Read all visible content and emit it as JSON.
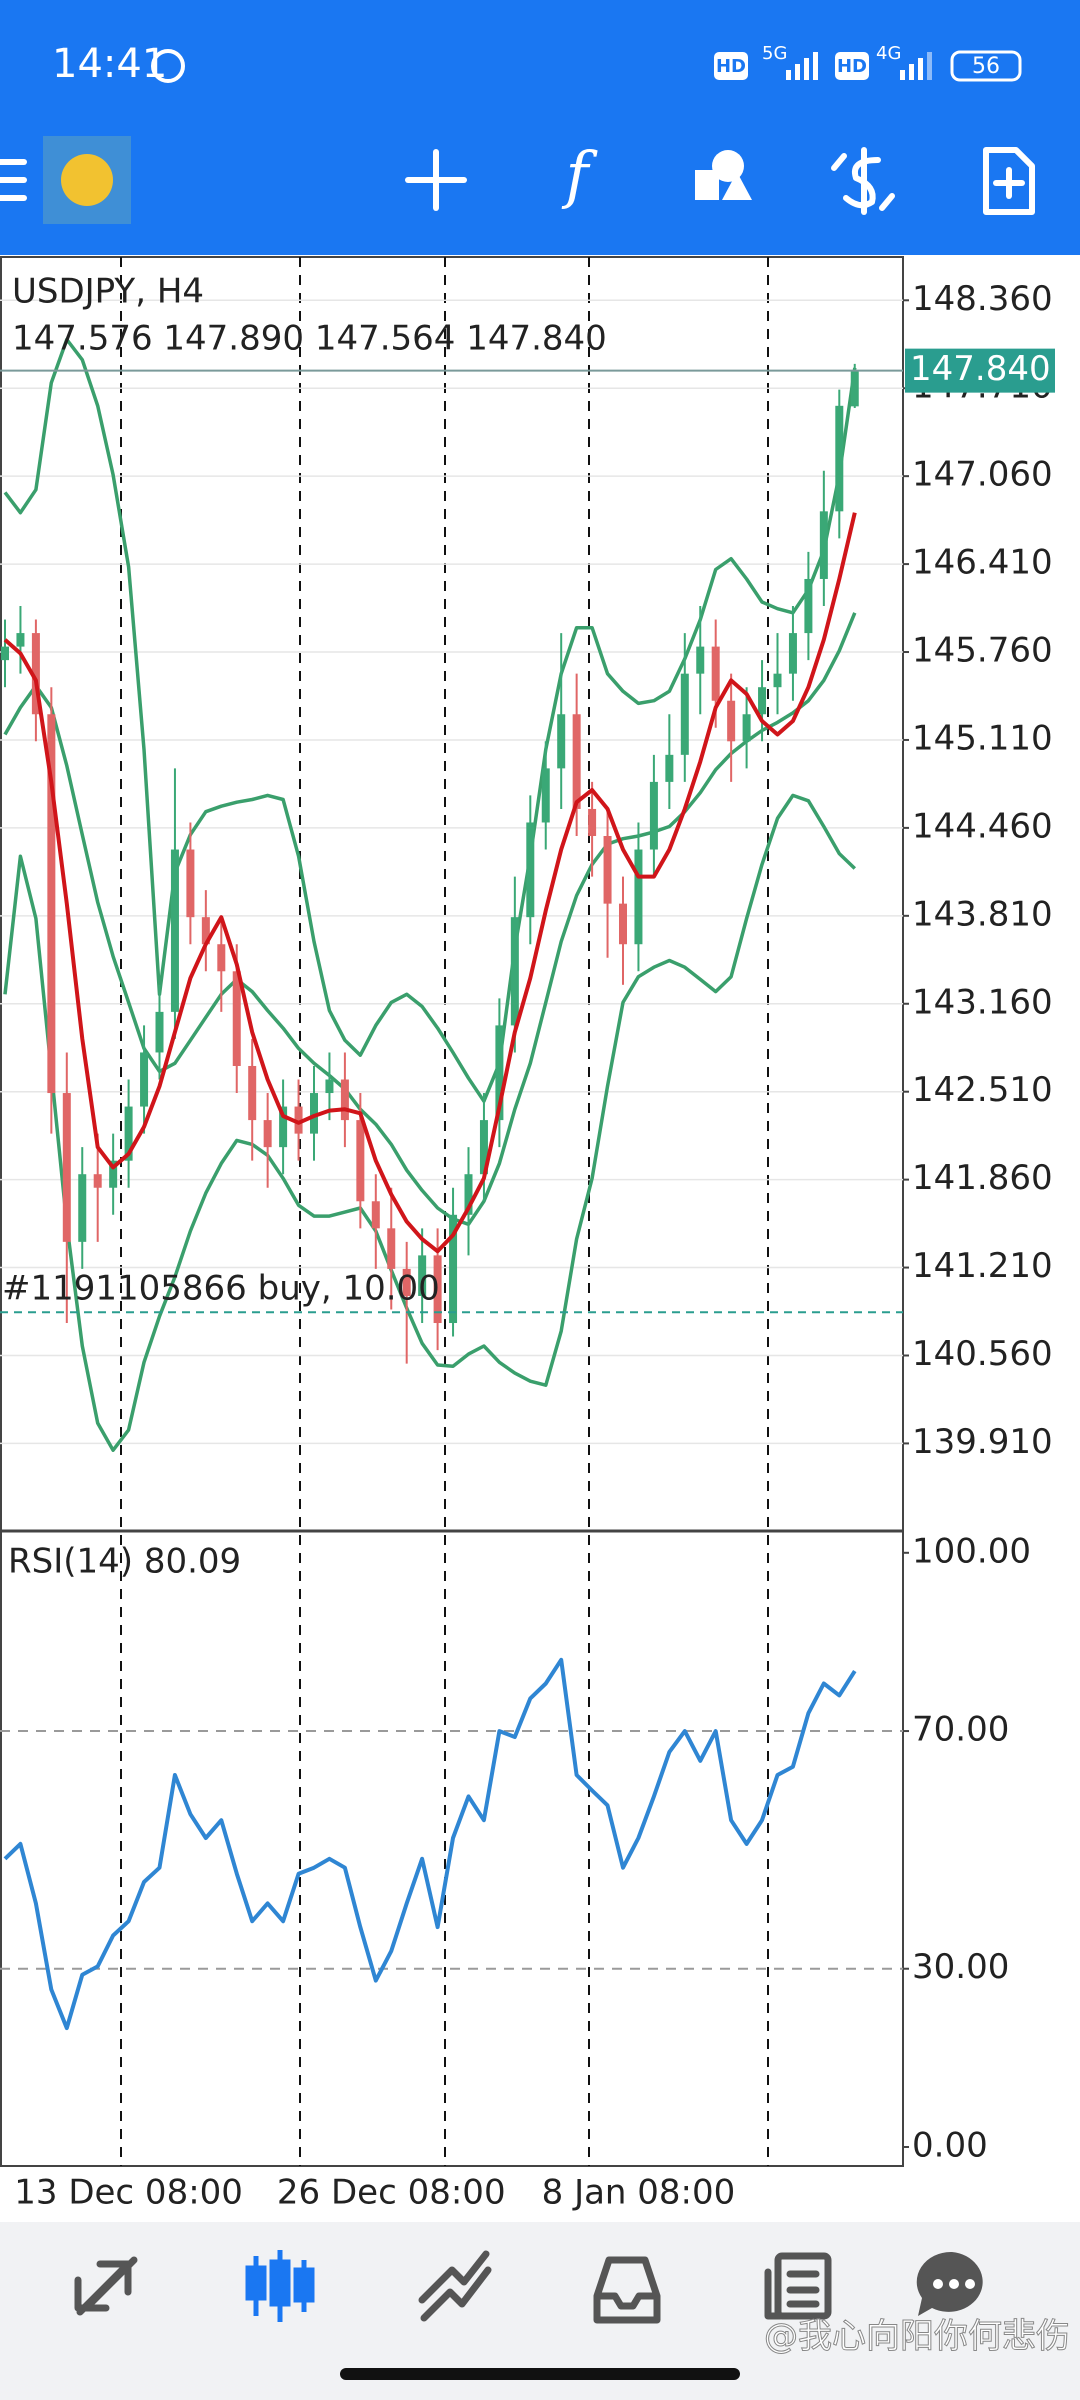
{
  "status_bar": {
    "time": "14:41",
    "hd_1": "HD",
    "network_1": "5G",
    "hd_2": "HD",
    "network_2": "4G",
    "battery": "56"
  },
  "chart_data": [
    {
      "type": "candlestick",
      "title": "USDJPY, H4",
      "subtitle": "147.576 147.890 147.564 147.840",
      "open": [
        145.7,
        145.8,
        145.9,
        145.3,
        142.5,
        141.4,
        141.9,
        141.8,
        142.0,
        142.4,
        142.8,
        143.1,
        144.3,
        143.8,
        143.6,
        143.4,
        142.7,
        142.3,
        142.1,
        142.4,
        142.2,
        142.5,
        142.6,
        142.3,
        141.7,
        141.5,
        141.2,
        141.0,
        141.3,
        140.8,
        141.6,
        141.9,
        142.3,
        143.0,
        143.8,
        144.5,
        144.9,
        145.3,
        144.6,
        144.4,
        143.9,
        143.6,
        144.3,
        144.8,
        145.0,
        145.6,
        145.8,
        145.4,
        145.1,
        145.3,
        145.5,
        145.6,
        145.9,
        146.3,
        146.8,
        147.576
      ],
      "high": [
        146.0,
        146.1,
        146.0,
        145.5,
        142.8,
        142.1,
        142.2,
        142.2,
        142.6,
        143.0,
        143.3,
        144.9,
        144.5,
        144.0,
        143.8,
        143.6,
        142.9,
        142.5,
        142.6,
        142.6,
        142.7,
        142.8,
        142.8,
        142.5,
        141.9,
        141.8,
        141.4,
        141.5,
        141.5,
        141.8,
        142.1,
        142.5,
        143.2,
        144.1,
        144.7,
        145.1,
        145.9,
        145.6,
        144.8,
        144.6,
        144.1,
        144.5,
        145.0,
        145.3,
        145.9,
        146.1,
        146.0,
        145.6,
        145.5,
        145.7,
        145.9,
        146.1,
        146.5,
        147.1,
        147.7,
        147.89
      ],
      "low": [
        145.5,
        145.6,
        145.1,
        142.2,
        140.8,
        141.2,
        141.4,
        141.6,
        141.8,
        142.2,
        142.6,
        142.9,
        143.6,
        143.4,
        143.1,
        142.5,
        142.0,
        141.8,
        141.9,
        142.0,
        142.0,
        142.3,
        142.1,
        141.5,
        141.2,
        140.9,
        140.5,
        140.8,
        140.6,
        140.7,
        141.3,
        141.7,
        142.1,
        142.8,
        143.6,
        144.3,
        144.6,
        144.4,
        144.1,
        143.5,
        143.3,
        143.4,
        144.1,
        144.6,
        144.8,
        145.3,
        145.2,
        144.8,
        144.9,
        145.1,
        145.3,
        145.4,
        145.7,
        146.1,
        146.6,
        147.564
      ],
      "close": [
        145.8,
        145.9,
        145.3,
        142.5,
        141.4,
        141.9,
        141.8,
        142.0,
        142.4,
        142.8,
        143.1,
        144.3,
        143.8,
        143.6,
        143.4,
        142.7,
        142.3,
        142.1,
        142.4,
        142.2,
        142.5,
        142.6,
        142.3,
        141.7,
        141.5,
        141.2,
        141.0,
        141.3,
        140.8,
        141.6,
        141.9,
        142.3,
        143.0,
        143.8,
        144.5,
        144.9,
        145.3,
        144.6,
        144.4,
        143.9,
        143.6,
        144.3,
        144.8,
        145.0,
        145.6,
        145.8,
        145.4,
        145.1,
        145.3,
        145.5,
        145.6,
        145.9,
        146.3,
        146.8,
        147.58,
        147.84
      ],
      "up_color": "#3aa876",
      "down_color": "#e06666",
      "series": [
        {
          "color": "#3a9f6c",
          "values": [
            146.94,
            146.79,
            146.96,
            147.75,
            148.07,
            147.92,
            147.58,
            147.07,
            146.39,
            145.04,
            143.23,
            144.13,
            144.41,
            144.58,
            144.62,
            144.65,
            144.67,
            144.7,
            144.67,
            144.25,
            143.62,
            143.11,
            142.89,
            142.78,
            143.0,
            143.17,
            143.23,
            143.14,
            142.98,
            142.8,
            142.61,
            142.44,
            142.72,
            143.57,
            144.25,
            145.04,
            145.6,
            145.94,
            145.94,
            145.6,
            145.47,
            145.38,
            145.4,
            145.47,
            145.71,
            146.0,
            146.37,
            146.45,
            146.3,
            146.13,
            146.08,
            146.05,
            146.22,
            146.51,
            147.07,
            147.86
          ]
        },
        {
          "color": "#3a9f6c",
          "values": [
            145.15,
            145.35,
            145.51,
            145.35,
            144.92,
            144.41,
            143.91,
            143.51,
            143.17,
            142.83,
            142.66,
            142.72,
            142.89,
            143.06,
            143.23,
            143.34,
            143.25,
            143.11,
            142.98,
            142.83,
            142.72,
            142.63,
            142.53,
            142.38,
            142.27,
            142.12,
            141.93,
            141.78,
            141.65,
            141.57,
            141.53,
            141.7,
            141.98,
            142.38,
            142.72,
            143.17,
            143.62,
            143.96,
            144.19,
            144.34,
            144.38,
            144.4,
            144.43,
            144.47,
            144.58,
            144.72,
            144.89,
            145.01,
            145.1,
            145.18,
            145.24,
            145.31,
            145.4,
            145.55,
            145.77,
            146.05
          ]
        },
        {
          "color": "#3a9f6c",
          "values": [
            143.23,
            144.25,
            143.79,
            142.66,
            141.53,
            140.63,
            140.06,
            139.86,
            140.01,
            140.51,
            140.85,
            141.14,
            141.48,
            141.76,
            141.98,
            142.15,
            142.12,
            142.04,
            141.87,
            141.67,
            141.59,
            141.59,
            141.62,
            141.65,
            141.48,
            141.19,
            140.91,
            140.65,
            140.49,
            140.48,
            140.57,
            140.63,
            140.51,
            140.43,
            140.37,
            140.34,
            140.74,
            141.42,
            141.87,
            142.55,
            143.17,
            143.36,
            143.43,
            143.48,
            143.43,
            143.34,
            143.25,
            143.36,
            143.79,
            144.19,
            144.53,
            144.7,
            144.66,
            144.47,
            144.27,
            144.16
          ]
        },
        {
          "color": "#d0151a",
          "values": [
            145.85,
            145.75,
            145.55,
            144.8,
            143.9,
            142.9,
            142.1,
            141.95,
            142.05,
            142.25,
            142.55,
            142.95,
            143.35,
            143.6,
            143.8,
            143.45,
            142.95,
            142.6,
            142.33,
            142.28,
            142.33,
            142.37,
            142.38,
            142.35,
            142.0,
            141.75,
            141.55,
            141.42,
            141.33,
            141.45,
            141.65,
            141.87,
            142.4,
            142.95,
            143.35,
            143.85,
            144.3,
            144.65,
            144.74,
            144.6,
            144.3,
            144.1,
            144.1,
            144.3,
            144.6,
            144.95,
            145.35,
            145.55,
            145.45,
            145.25,
            145.15,
            145.25,
            145.5,
            145.85,
            146.3,
            146.79
          ]
        }
      ],
      "ylim": [
        139.27,
        148.68
      ],
      "yticks": [
        {
          "value": 148.36,
          "label": "148.360"
        },
        {
          "value": 147.71,
          "label": "147.710"
        },
        {
          "value": 147.06,
          "label": "147.060"
        },
        {
          "value": 146.41,
          "label": "146.410"
        },
        {
          "value": 145.76,
          "label": "145.760"
        },
        {
          "value": 145.11,
          "label": "145.110"
        },
        {
          "value": 144.46,
          "label": "144.460"
        },
        {
          "value": 143.81,
          "label": "143.810"
        },
        {
          "value": 143.16,
          "label": "143.160"
        },
        {
          "value": 142.51,
          "label": "142.510"
        },
        {
          "value": 141.86,
          "label": "141.860"
        },
        {
          "value": 141.21,
          "label": "141.210"
        },
        {
          "value": 140.56,
          "label": "140.560"
        },
        {
          "value": 139.91,
          "label": "139.910"
        }
      ],
      "grid": true,
      "price_line": {
        "value": 147.84,
        "label": "147.840",
        "color": "#2a9d8f"
      },
      "order_line": {
        "value": 140.88,
        "label": "#1191105866 buy, 10.00",
        "color": "#2a9d8f"
      }
    },
    {
      "type": "line",
      "title": "RSI(14) 80.09",
      "categories": [
        null,
        null,
        null,
        null,
        null,
        null,
        null,
        null,
        "13 Dec 08:00",
        null,
        null,
        null,
        null,
        null,
        null,
        null,
        null,
        null,
        null,
        null,
        null,
        null,
        null,
        null,
        null,
        "26 Dec 08:00",
        null,
        null,
        null,
        null,
        null,
        null,
        null,
        null,
        null,
        null,
        null,
        null,
        null,
        null,
        null,
        "8 Jan 08:00",
        null,
        null,
        null,
        null,
        null,
        null,
        null,
        null,
        null,
        null,
        null,
        null,
        null,
        null
      ],
      "series": [
        {
          "color": "#2f86d3",
          "values": [
            48.5,
            51,
            41,
            26.5,
            20,
            29,
            30.4,
            35.6,
            38,
            44.6,
            47,
            62.6,
            56,
            52,
            55,
            46,
            38,
            41,
            38,
            46,
            47,
            48.5,
            47,
            37,
            28,
            33,
            41,
            48.5,
            37,
            52,
            59,
            55,
            70,
            69,
            75.5,
            78,
            82,
            62.6,
            60,
            57.5,
            47,
            52,
            59,
            66.5,
            70,
            65,
            70,
            55,
            51,
            55,
            62.6,
            64,
            73,
            78,
            76,
            80.09
          ]
        }
      ],
      "ylim": [
        -3.2,
        103.5
      ],
      "yticks": [
        {
          "value": 100,
          "label": "100.00"
        },
        {
          "value": 70,
          "label": "70.00"
        },
        {
          "value": 30,
          "label": "30.00"
        },
        {
          "value": 0,
          "label": "0.00"
        }
      ],
      "levels": [
        70,
        30
      ]
    }
  ],
  "watermark": "@我心向阳你何悲伤"
}
